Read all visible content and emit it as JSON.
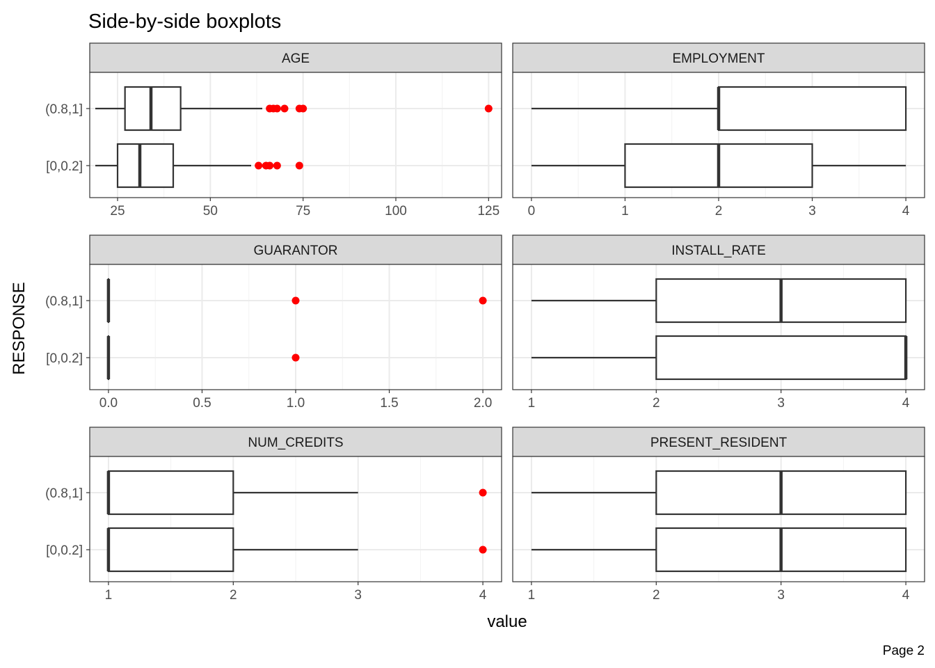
{
  "title": "Side-by-side boxplots",
  "caption": "Page 2",
  "chart_data": {
    "type": "boxplot",
    "xlabel": "value",
    "ylabel": "RESPONSE",
    "categories": [
      "(0.8,1]",
      "[0,0.2]"
    ],
    "grid": true,
    "outlier_color": "#ff0000",
    "panels": [
      {
        "name": "AGE",
        "xlim": [
          17.5,
          128.5
        ],
        "xticks": [
          25,
          50,
          75,
          100,
          125
        ],
        "xtick_labels": [
          "25",
          "50",
          "75",
          "100",
          "125"
        ],
        "boxes": [
          {
            "category": "(0.8,1]",
            "whisker_low": 19,
            "q1": 27,
            "median": 34,
            "q3": 42,
            "whisker_high": 64,
            "outliers": [
              66,
              67,
              68,
              70,
              74,
              75,
              125
            ]
          },
          {
            "category": "[0,0.2]",
            "whisker_low": 19,
            "q1": 25,
            "median": 31,
            "q3": 40,
            "whisker_high": 61,
            "outliers": [
              63,
              65,
              66,
              68,
              74
            ]
          }
        ]
      },
      {
        "name": "EMPLOYMENT",
        "xlim": [
          -0.2,
          4.2
        ],
        "xticks": [
          0,
          1,
          2,
          3,
          4
        ],
        "xtick_labels": [
          "0",
          "1",
          "2",
          "3",
          "4"
        ],
        "boxes": [
          {
            "category": "(0.8,1]",
            "whisker_low": 0,
            "q1": 2,
            "median": 2,
            "q3": 4,
            "whisker_high": 4,
            "outliers": []
          },
          {
            "category": "[0,0.2]",
            "whisker_low": 0,
            "q1": 1,
            "median": 2,
            "q3": 3,
            "whisker_high": 4,
            "outliers": []
          }
        ]
      },
      {
        "name": "GUARANTOR",
        "xlim": [
          -0.1,
          2.1
        ],
        "xticks": [
          0,
          0.5,
          1,
          1.5,
          2
        ],
        "xtick_labels": [
          "0.0",
          "0.5",
          "1.0",
          "1.5",
          "2.0"
        ],
        "boxes": [
          {
            "category": "(0.8,1]",
            "whisker_low": 0,
            "q1": 0,
            "median": 0,
            "q3": 0,
            "whisker_high": 0,
            "outliers": [
              1,
              2
            ]
          },
          {
            "category": "[0,0.2]",
            "whisker_low": 0,
            "q1": 0,
            "median": 0,
            "q3": 0,
            "whisker_high": 0,
            "outliers": [
              1
            ]
          }
        ]
      },
      {
        "name": "INSTALL_RATE",
        "xlim": [
          0.85,
          4.15
        ],
        "xticks": [
          1,
          2,
          3,
          4
        ],
        "xtick_labels": [
          "1",
          "2",
          "3",
          "4"
        ],
        "boxes": [
          {
            "category": "(0.8,1]",
            "whisker_low": 1,
            "q1": 2,
            "median": 3,
            "q3": 4,
            "whisker_high": 4,
            "outliers": []
          },
          {
            "category": "[0,0.2]",
            "whisker_low": 1,
            "q1": 2,
            "median": 4,
            "q3": 4,
            "whisker_high": 4,
            "outliers": []
          }
        ]
      },
      {
        "name": "NUM_CREDITS",
        "xlim": [
          0.85,
          4.15
        ],
        "xticks": [
          1,
          2,
          3,
          4
        ],
        "xtick_labels": [
          "1",
          "2",
          "3",
          "4"
        ],
        "boxes": [
          {
            "category": "(0.8,1]",
            "whisker_low": 1,
            "q1": 1,
            "median": 1,
            "q3": 2,
            "whisker_high": 3,
            "outliers": [
              4
            ]
          },
          {
            "category": "[0,0.2]",
            "whisker_low": 1,
            "q1": 1,
            "median": 1,
            "q3": 2,
            "whisker_high": 3,
            "outliers": [
              4
            ]
          }
        ]
      },
      {
        "name": "PRESENT_RESIDENT",
        "xlim": [
          0.85,
          4.15
        ],
        "xticks": [
          1,
          2,
          3,
          4
        ],
        "xtick_labels": [
          "1",
          "2",
          "3",
          "4"
        ],
        "boxes": [
          {
            "category": "(0.8,1]",
            "whisker_low": 1,
            "q1": 2,
            "median": 3,
            "q3": 4,
            "whisker_high": 4,
            "outliers": []
          },
          {
            "category": "[0,0.2]",
            "whisker_low": 1,
            "q1": 2,
            "median": 3,
            "q3": 4,
            "whisker_high": 4,
            "outliers": []
          }
        ]
      }
    ]
  }
}
